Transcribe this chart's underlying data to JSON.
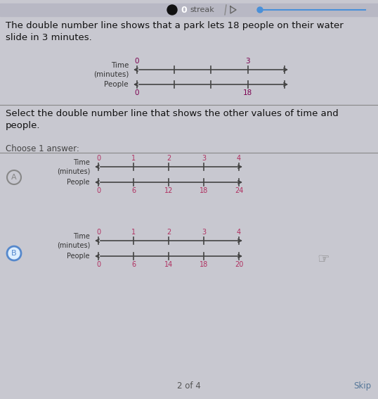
{
  "bg_color": "#c8c8d0",
  "header_color": "#b8b8c4",
  "title_text": "The double number line shows that a park lets 18 people on their water\nslide in 3 minutes.",
  "select_text": "Select the double number line that shows the other values of time and\npeople.",
  "choose_text": "Choose 1 answer:",
  "footer_text": "2 of 4",
  "skip_text": "Skip",
  "top_time_shown": [
    "0",
    "3"
  ],
  "top_people_shown": [
    "0",
    "18"
  ],
  "option_A_time_shown": [
    "0",
    "1",
    "2",
    "3",
    "4"
  ],
  "option_A_people_shown": [
    "0",
    "6",
    "12",
    "18",
    "24"
  ],
  "option_B_time_shown": [
    "0",
    "1",
    "2",
    "3",
    "4"
  ],
  "option_B_people_shown": [
    "0",
    "6",
    "14",
    "18",
    "20"
  ],
  "dark_text": "#111111",
  "label_color": "#333333",
  "tick_color_dark": "#7b0050",
  "tick_color_red": "#b03060",
  "line_color": "#444444",
  "option_a_circle_color": "#888888",
  "option_b_circle_color": "#5588cc",
  "option_b_fill": "#ddeeff"
}
